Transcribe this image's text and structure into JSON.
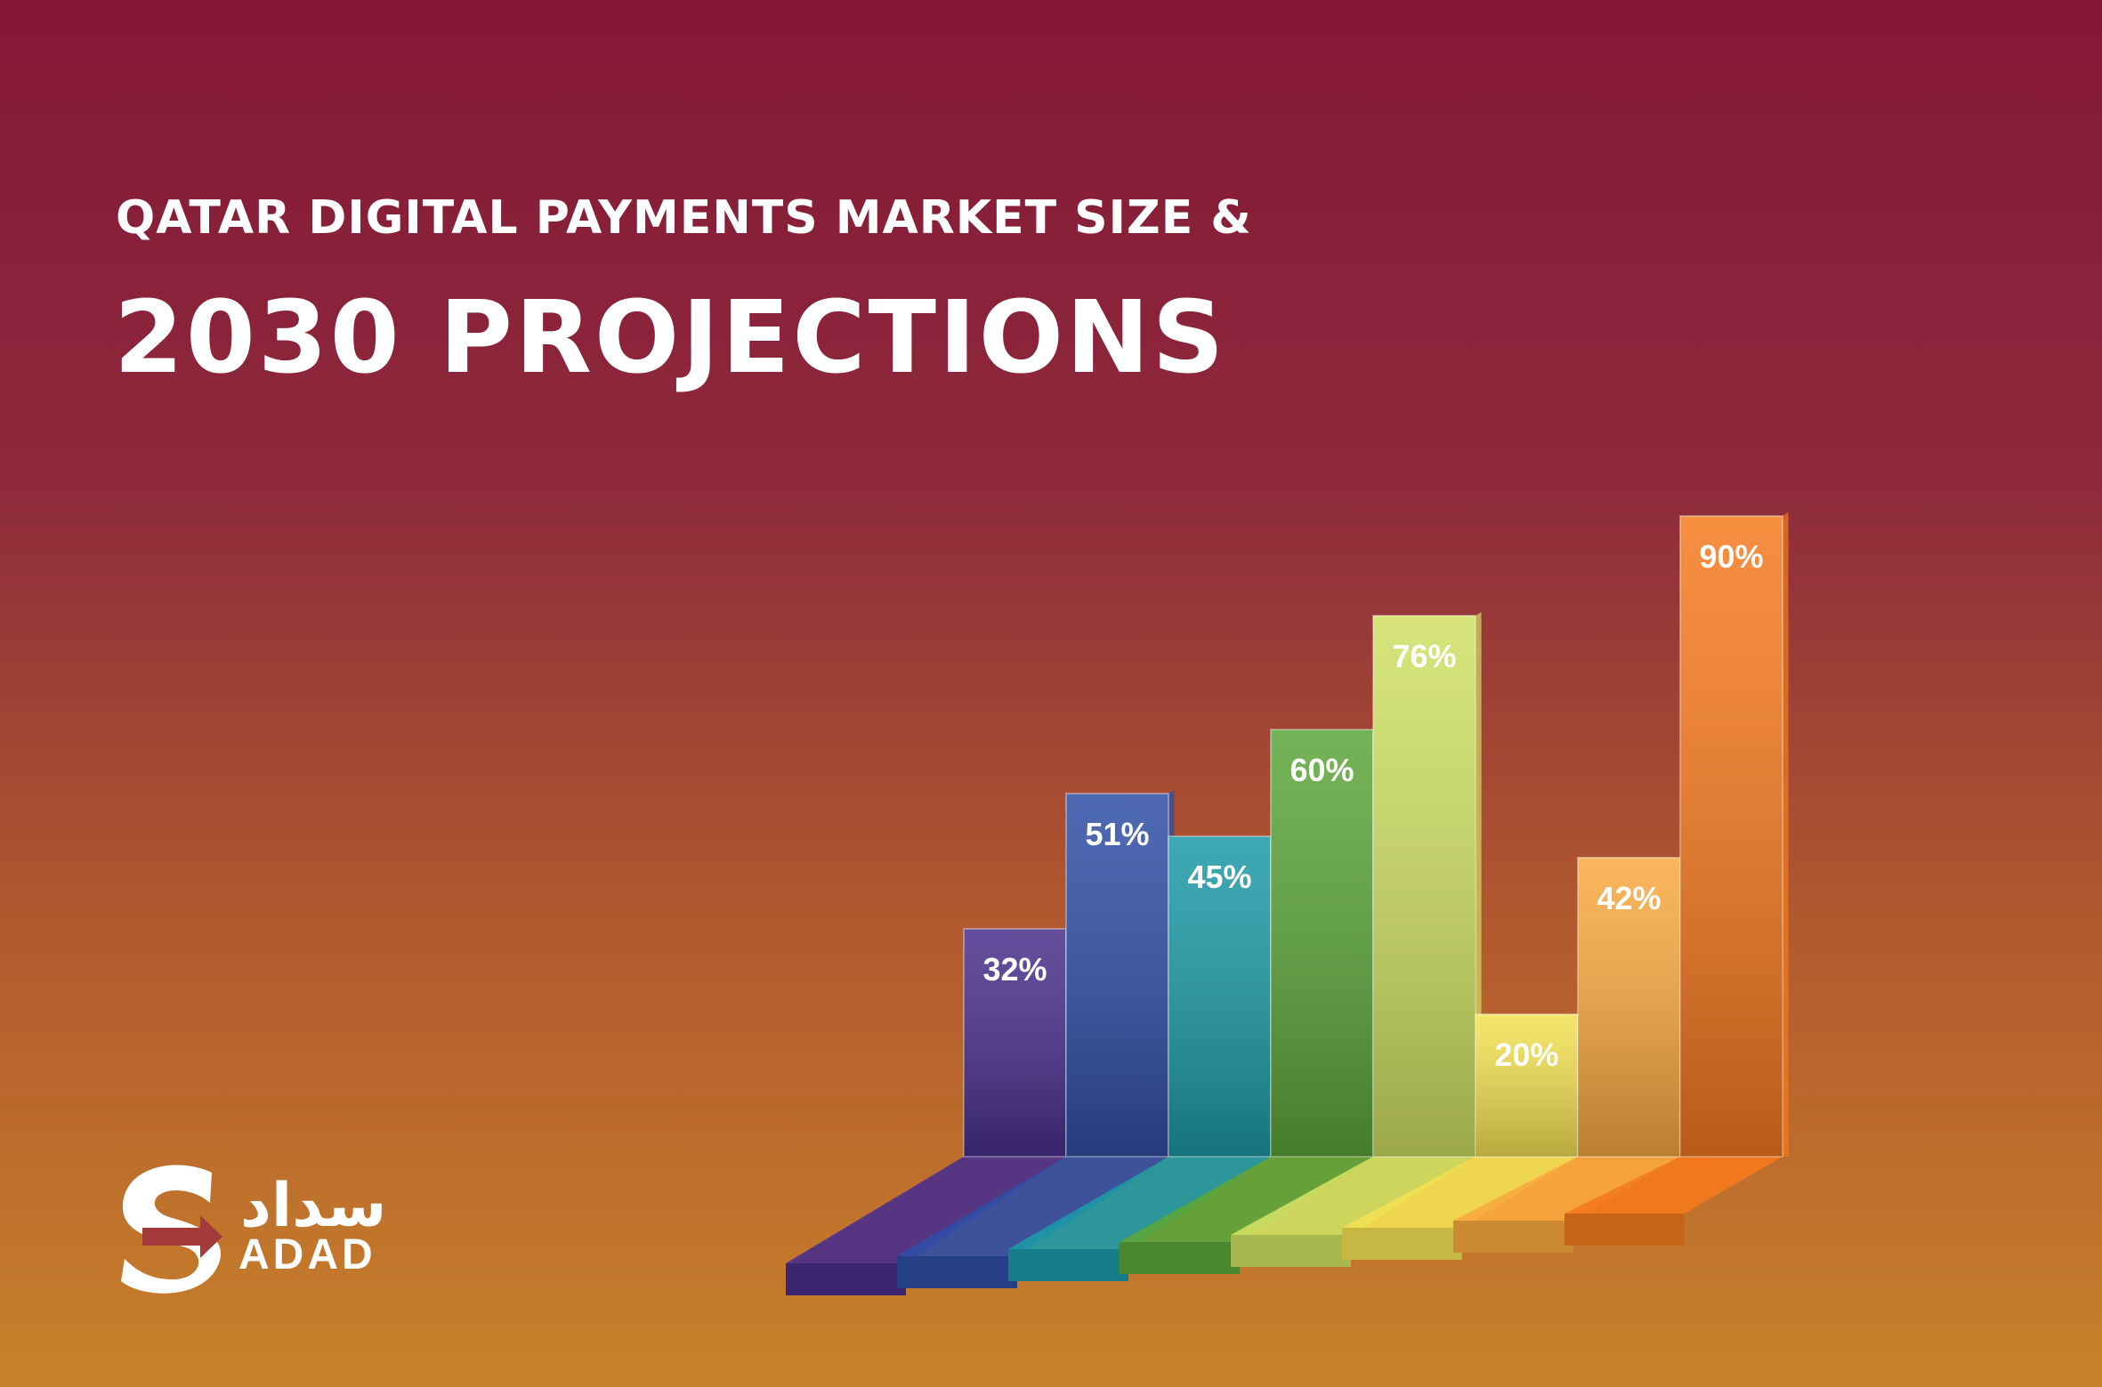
{
  "chart_data": {
    "type": "bar",
    "title": "QATAR DIGITAL PAYMENTS MARKET SIZE &",
    "subtitle": "2030 PROJECTIONS",
    "values": [
      32,
      51,
      45,
      60,
      76,
      20,
      42,
      90
    ],
    "value_labels": [
      "32%",
      "51%",
      "45%",
      "60%",
      "76%",
      "20%",
      "42%",
      "90%"
    ],
    "colors": [
      "#4a2f8c",
      "#2f4fa6",
      "#1c9aa6",
      "#5ca53a",
      "#cfe063",
      "#f3e152",
      "#f9a93f",
      "#f57a1f"
    ]
  },
  "logo": {
    "arabic": "سداد",
    "latin": "ADAD"
  }
}
